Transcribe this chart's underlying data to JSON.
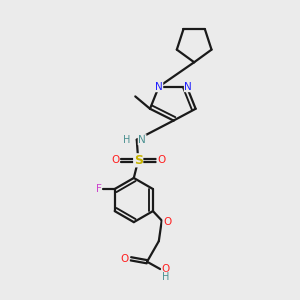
{
  "background_color": "#ebebeb",
  "bond_color": "#1a1a1a",
  "N_color": "#2020ff",
  "O_color": "#ff2020",
  "S_color": "#c8b400",
  "F_color": "#cc44cc",
  "NH_color": "#4a9090",
  "line_width": 1.6,
  "figsize": [
    3.0,
    3.0
  ],
  "dpi": 100,
  "xlim": [
    0,
    10
  ],
  "ylim": [
    0,
    10
  ]
}
